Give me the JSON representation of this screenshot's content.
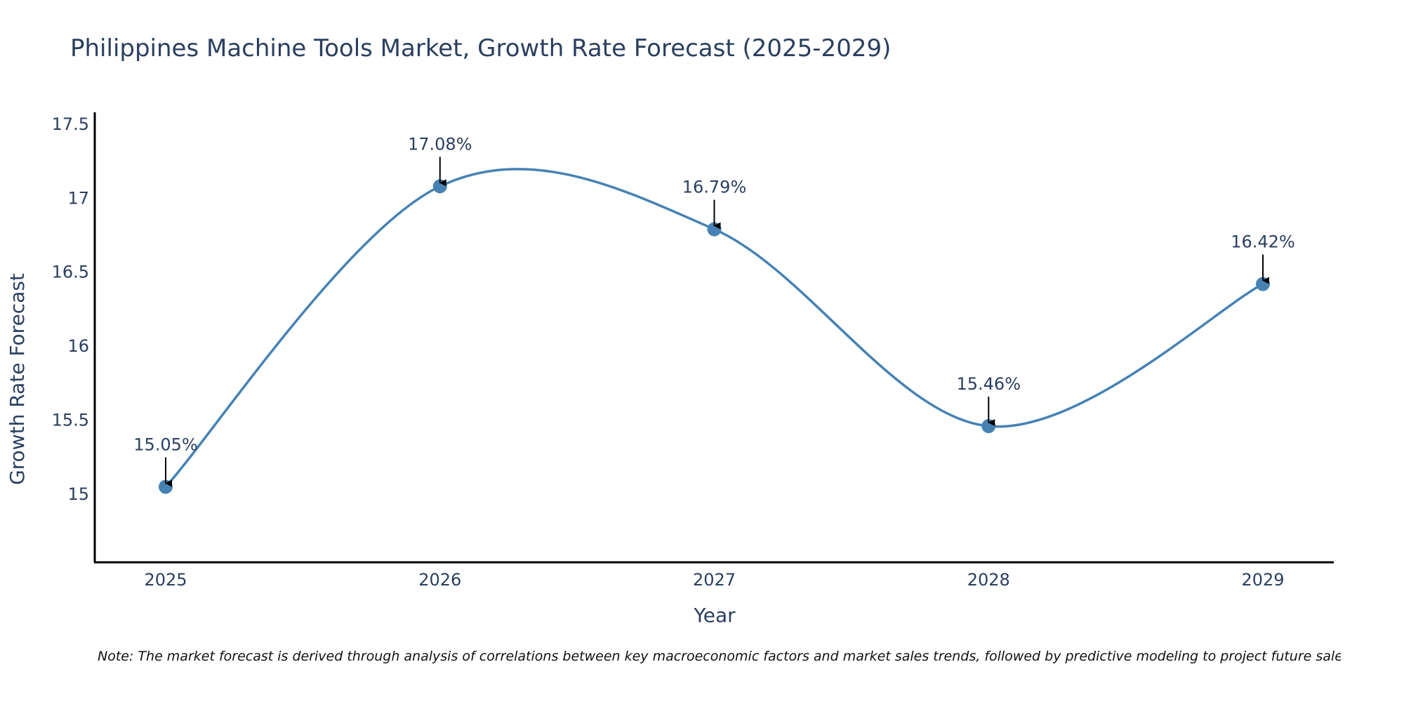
{
  "chart_data": {
    "type": "line",
    "title": "Philippines Machine Tools Market, Growth Rate Forecast (2025-2029)",
    "xlabel": "Year",
    "ylabel": "Growth Rate Forecast",
    "categories": [
      "2025",
      "2026",
      "2027",
      "2028",
      "2029"
    ],
    "series": [
      {
        "name": "Growth Rate Forecast",
        "values": [
          15.05,
          17.08,
          16.79,
          15.46,
          16.42
        ],
        "labels": [
          "15.05%",
          "17.08%",
          "16.79%",
          "15.46%",
          "16.42%"
        ]
      }
    ],
    "ylim": [
      14.54,
      17.58
    ],
    "y_ticks": [
      15,
      15.5,
      16,
      16.5,
      17,
      17.5
    ],
    "y_tick_labels": [
      "15",
      "15.5",
      "16",
      "16.5",
      "17",
      "17.5"
    ],
    "line_shape": "spline",
    "grid": false,
    "colors": {
      "line": "#4682b4",
      "marker": "#4682b4",
      "axis": "#000000",
      "text": "#2a3f5f",
      "arrow": "#000000"
    },
    "note": "Note: The market forecast is derived through analysis of correlations between key macroeconomic factors and market sales trends, followed by predictive modeling to project future sales."
  }
}
